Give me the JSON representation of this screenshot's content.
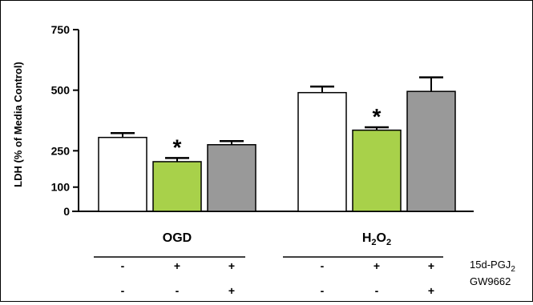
{
  "chart_data": {
    "type": "bar",
    "ylabel": "LDH (% of Media Control)",
    "yticks": [
      0,
      100,
      250,
      500,
      750
    ],
    "ylim": [
      0,
      750
    ],
    "groups": [
      {
        "label": "OGD",
        "bars": [
          {
            "value": 305,
            "error": 18,
            "color": "#ffffff",
            "sig": ""
          },
          {
            "value": 205,
            "error": 15,
            "color": "#a8d14a",
            "sig": "*"
          },
          {
            "value": 275,
            "error": 15,
            "color": "#999999",
            "sig": ""
          }
        ]
      },
      {
        "label": "H₂O₂",
        "label_main": "H",
        "label_sub1": "2",
        "label_mid": "O",
        "label_sub2": "2",
        "bars": [
          {
            "value": 490,
            "error": 25,
            "color": "#ffffff",
            "sig": ""
          },
          {
            "value": 335,
            "error": 12,
            "color": "#a8d14a",
            "sig": "*"
          },
          {
            "value": 495,
            "error": 58,
            "color": "#999999",
            "sig": ""
          }
        ]
      }
    ],
    "conditions": [
      {
        "label_main": "15d-PGJ",
        "label_sub": "2",
        "signs": [
          "-",
          "+",
          "+",
          "-",
          "+",
          "+"
        ]
      },
      {
        "label_main": "GW9662",
        "label_sub": "",
        "signs": [
          "-",
          "-",
          "+",
          "-",
          "-",
          "+"
        ]
      }
    ]
  }
}
